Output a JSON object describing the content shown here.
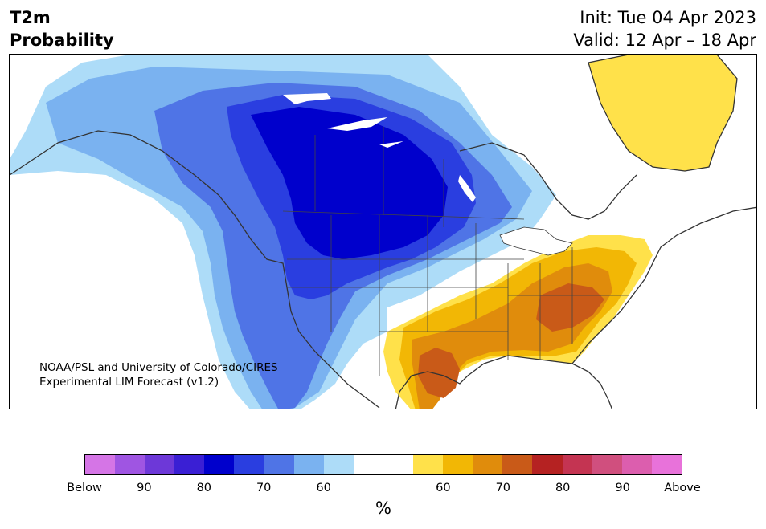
{
  "header": {
    "variable": "T2m",
    "type": "Probability",
    "init": "Init: Tue 04 Apr 2023",
    "valid": "Valid: 12 Apr – 18 Apr"
  },
  "credit": {
    "line1": "NOAA/PSL and University of Colorado/CIRES",
    "line2": "Experimental LIM Forecast (v1.2)"
  },
  "colorbar": {
    "unit": "%",
    "colors": [
      "#d575e6",
      "#9f55e2",
      "#6d38d8",
      "#3a1fd4",
      "#0000cc",
      "#2a3ee0",
      "#4f74e6",
      "#7ab2f0",
      "#addcf8",
      "#ffffff",
      "#ffffff",
      "#ffe14a",
      "#f2b705",
      "#e08c0c",
      "#c95a18",
      "#b52222",
      "#c43452",
      "#d04f7e",
      "#dc5eae",
      "#e872da"
    ],
    "ticks": [
      {
        "label": "Below",
        "index": 0
      },
      {
        "label": "90",
        "index": 2
      },
      {
        "label": "80",
        "index": 4
      },
      {
        "label": "70",
        "index": 6
      },
      {
        "label": "60",
        "index": 8
      },
      {
        "label": "60",
        "index": 12
      },
      {
        "label": "70",
        "index": 14
      },
      {
        "label": "80",
        "index": 16
      },
      {
        "label": "90",
        "index": 18
      },
      {
        "label": "Above",
        "index": 20
      }
    ]
  },
  "map": {
    "region": "North America",
    "below_colors": {
      "p50": "#addcf8",
      "p60": "#7ab2f0",
      "p70": "#4f74e6",
      "p80": "#2a3ee0",
      "p90": "#0000cc"
    },
    "above_colors": {
      "p50": "#ffe14a",
      "p60": "#f2b705",
      "p70": "#e08c0c",
      "p80": "#c95a18"
    },
    "land_outline": "#333333"
  }
}
